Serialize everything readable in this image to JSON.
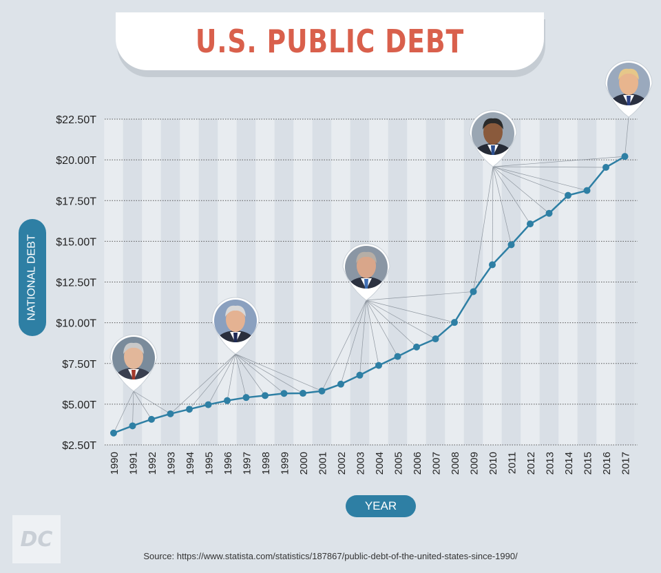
{
  "title": "U.S. PUBLIC DEBT",
  "y_axis_label": "NATIONAL DEBT",
  "x_axis_label": "YEAR",
  "source": "Source: https://www.statista.com/statistics/187867/public-debt-of-the-united-states-since-1990/",
  "logo_text": "DC",
  "colors": {
    "background": "#dde3e9",
    "title": "#d9604c",
    "line": "#2e7fa4",
    "stripe_light": "#e8ecf0",
    "stripe_dark": "#d9dfe6"
  },
  "chart_data": {
    "type": "line",
    "title": "U.S. PUBLIC DEBT",
    "xlabel": "YEAR",
    "ylabel": "NATIONAL DEBT",
    "x": [
      "1990",
      "1991",
      "1992",
      "1993",
      "1994",
      "1995",
      "1996",
      "1997",
      "1998",
      "1999",
      "2000",
      "2001",
      "2002",
      "2003",
      "2004",
      "2005",
      "2006",
      "2007",
      "2008",
      "2009",
      "2010",
      "2011",
      "2012",
      "2013",
      "2014",
      "2015",
      "2016",
      "2017"
    ],
    "values": [
      3.23,
      3.67,
      4.07,
      4.41,
      4.69,
      4.97,
      5.22,
      5.41,
      5.53,
      5.66,
      5.67,
      5.81,
      6.23,
      6.78,
      7.38,
      7.93,
      8.51,
      9.01,
      10.02,
      11.91,
      13.56,
      14.79,
      16.07,
      16.72,
      17.82,
      18.12,
      19.54,
      20.21
    ],
    "y_ticks": [
      "$2.50T",
      "$5.00T",
      "$7.50T",
      "$10.00T",
      "$12.50T",
      "$15.00T",
      "$17.50T",
      "$20.00T",
      "$22.50T"
    ],
    "y_tick_values": [
      2.5,
      5,
      7.5,
      10,
      12.5,
      15,
      17.5,
      20,
      22.5
    ],
    "ylim": [
      2.5,
      22.5
    ],
    "grid": true,
    "annotations": [
      {
        "name": "bush-sr-portrait",
        "years": [
          "1990",
          "1991",
          "1992",
          "1993"
        ]
      },
      {
        "name": "clinton-portrait",
        "years": [
          "1993",
          "1994",
          "1995",
          "1996",
          "1997",
          "1998",
          "1999",
          "2000",
          "2001"
        ]
      },
      {
        "name": "bush-jr-portrait",
        "years": [
          "2001",
          "2002",
          "2003",
          "2004",
          "2005",
          "2006",
          "2007",
          "2008",
          "2009"
        ]
      },
      {
        "name": "obama-portrait",
        "years": [
          "2009",
          "2010",
          "2011",
          "2012",
          "2013",
          "2014",
          "2015",
          "2016",
          "2017"
        ]
      },
      {
        "name": "trump-portrait",
        "years": [
          "2017"
        ]
      }
    ]
  }
}
